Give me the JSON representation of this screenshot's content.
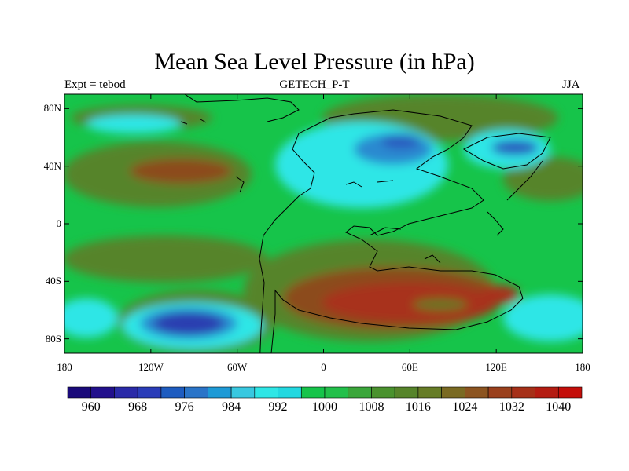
{
  "title": "Mean Sea Level Pressure (in hPa)",
  "left_string": "Expt = tebod",
  "center_string": "GETECH_P-T",
  "right_string": "JJA",
  "lat_ticks": [
    "80N",
    "40N",
    "0",
    "40S",
    "80S"
  ],
  "lon_ticks": [
    "180",
    "120W",
    "60W",
    "0",
    "60E",
    "120E",
    "180"
  ],
  "colorbar": {
    "labels": [
      "960",
      "968",
      "976",
      "984",
      "992",
      "1000",
      "1008",
      "1016",
      "1024",
      "1032",
      "1040"
    ],
    "colors": [
      "#1a0a7a",
      "#22108c",
      "#2a2aa8",
      "#2a3cb8",
      "#1e5cc0",
      "#2a74c8",
      "#1e9ad6",
      "#38c8e0",
      "#2ee6e6",
      "#22d8e0",
      "#16c44a",
      "#22c04a",
      "#3aa63a",
      "#4a922e",
      "#56842a",
      "#667c26",
      "#7a6a22",
      "#8c5420",
      "#9a401c",
      "#a63018",
      "#b41c12",
      "#c40e0a"
    ]
  },
  "map_layers": {
    "background": "#16c44a",
    "green_light": "#2ec24a",
    "olive": "#56842a",
    "olive_dark": "#6a7424",
    "brown": "#8c4c1e",
    "red": "#a8301a",
    "cyan": "#2ee6e6",
    "cyan_mid": "#22d8e0",
    "blue_light": "#2a8ad0",
    "blue": "#2a5cc0",
    "blue_dark": "#2a3cb0"
  }
}
